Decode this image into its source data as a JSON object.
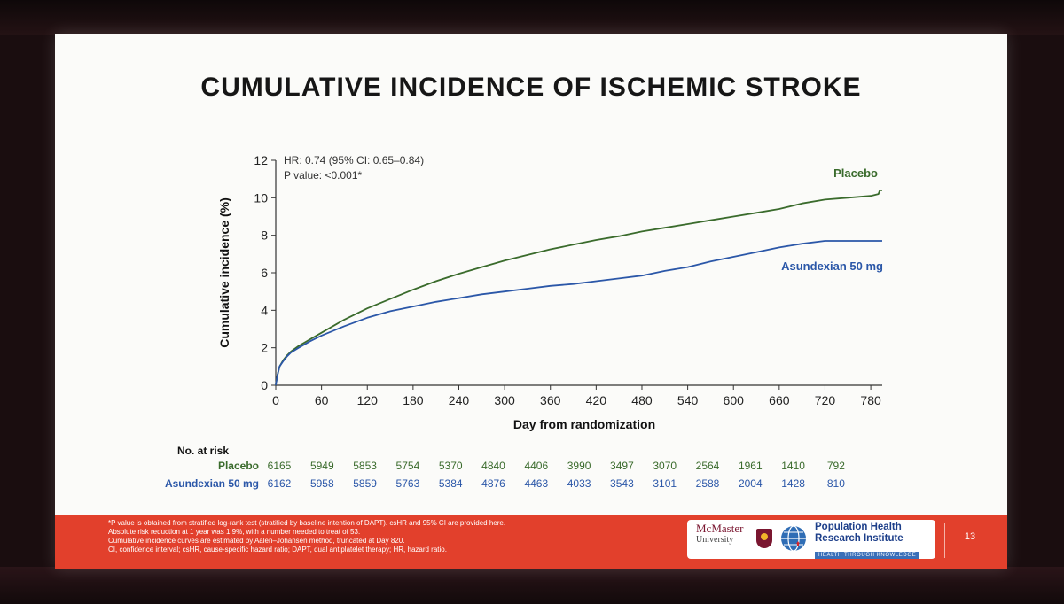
{
  "slide": {
    "title": "CUMULATIVE INCIDENCE OF ISCHEMIC STROKE",
    "page_number": "13"
  },
  "chart_data": {
    "type": "line",
    "title": "CUMULATIVE INCIDENCE OF ISCHEMIC STROKE",
    "xlabel": "Day from randomization",
    "ylabel": "Cumulative incidence (%)",
    "xlim": [
      0,
      795
    ],
    "ylim": [
      0,
      12
    ],
    "x_ticks": [
      0,
      60,
      120,
      180,
      240,
      300,
      360,
      420,
      480,
      540,
      600,
      660,
      720,
      780
    ],
    "y_ticks": [
      0,
      2,
      4,
      6,
      8,
      10,
      12
    ],
    "grid": false,
    "annotations": [
      "HR: 0.74 (95% CI: 0.65–0.84)",
      "P value: <0.001*"
    ],
    "series": [
      {
        "name": "Placebo",
        "color": "#3a6b2c",
        "x": [
          0,
          2,
          5,
          10,
          15,
          20,
          30,
          45,
          60,
          90,
          120,
          150,
          180,
          210,
          240,
          270,
          300,
          330,
          360,
          390,
          420,
          450,
          480,
          510,
          540,
          570,
          600,
          630,
          660,
          690,
          720,
          750,
          780,
          790,
          792,
          795
        ],
        "y": [
          0,
          0.5,
          1.0,
          1.35,
          1.6,
          1.8,
          2.1,
          2.45,
          2.8,
          3.5,
          4.1,
          4.6,
          5.1,
          5.55,
          5.95,
          6.3,
          6.65,
          6.95,
          7.25,
          7.5,
          7.75,
          7.95,
          8.2,
          8.4,
          8.6,
          8.8,
          9.0,
          9.2,
          9.4,
          9.7,
          9.9,
          10.0,
          10.1,
          10.2,
          10.4,
          10.4
        ]
      },
      {
        "name": "Asundexian 50 mg",
        "color": "#2b57a8",
        "x": [
          0,
          2,
          5,
          10,
          15,
          20,
          30,
          45,
          60,
          90,
          120,
          150,
          180,
          210,
          240,
          270,
          300,
          330,
          360,
          390,
          420,
          450,
          480,
          510,
          540,
          570,
          600,
          630,
          660,
          690,
          720,
          750,
          780,
          795
        ],
        "y": [
          0,
          0.5,
          1.0,
          1.3,
          1.55,
          1.75,
          2.0,
          2.35,
          2.65,
          3.15,
          3.6,
          3.95,
          4.2,
          4.45,
          4.65,
          4.85,
          5.0,
          5.15,
          5.3,
          5.4,
          5.55,
          5.7,
          5.85,
          6.1,
          6.3,
          6.6,
          6.85,
          7.1,
          7.35,
          7.55,
          7.7,
          7.7,
          7.7,
          7.7
        ]
      }
    ],
    "legend_labels": {
      "placebo": "Placebo",
      "asundexian": "Asundexian 50 mg"
    },
    "risk_table": {
      "heading": "No. at risk",
      "placebo_label": "Placebo",
      "asundexian_label": "Asundexian 50 mg",
      "placebo": [
        "6165",
        "5949",
        "5853",
        "5754",
        "5370",
        "4840",
        "4406",
        "3990",
        "3497",
        "3070",
        "2564",
        "1961",
        "1410",
        "792"
      ],
      "asundexian": [
        "6162",
        "5958",
        "5859",
        "5763",
        "5384",
        "4876",
        "4463",
        "4033",
        "3543",
        "3101",
        "2588",
        "2004",
        "1428",
        "810"
      ]
    }
  },
  "footer": {
    "notes": [
      "*P value is obtained from stratified log-rank test (stratified by baseline intention of DAPT). csHR and 95% CI are provided here.",
      "Absolute risk reduction at 1 year was 1.9%, with a number needed to treat of 53.",
      "Cumulative incidence curves are estimated by Aalen–Johansen method, truncated at Day 820.",
      "CI, confidence interval; csHR, cause-specific hazard ratio; DAPT, dual antiplatelet therapy; HR, hazard ratio."
    ],
    "mcmaster_name": "McMaster",
    "mcmaster_sub": "University",
    "phri_line1": "Population Health",
    "phri_line2": "Research Institute",
    "phri_tagline": "HEALTH THROUGH KNOWLEDGE"
  },
  "colors": {
    "placebo": "#3a6b2c",
    "asundexian": "#2b57a8",
    "footer_bar": "#e2402c"
  }
}
